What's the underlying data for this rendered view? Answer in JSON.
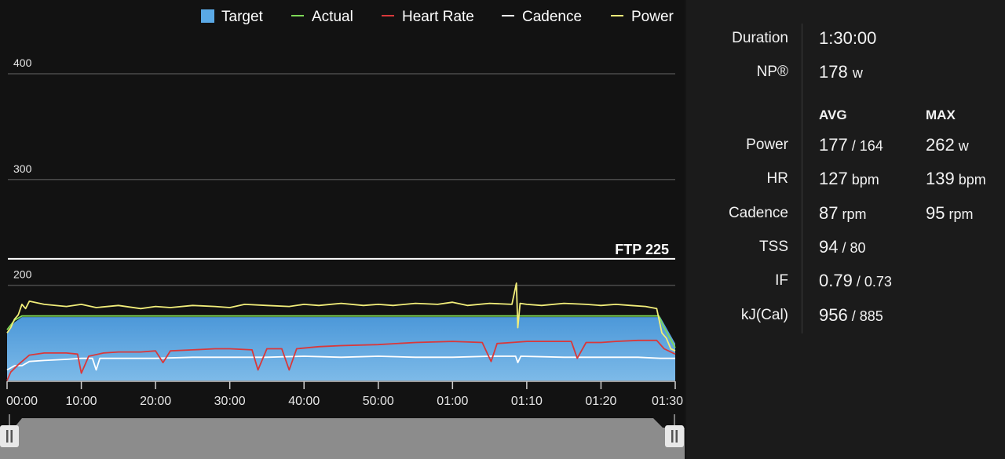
{
  "legend": [
    {
      "name": "Target",
      "marker": "square",
      "color": "#5aa9e6"
    },
    {
      "name": "Actual",
      "marker": "line",
      "color": "#7ed957"
    },
    {
      "name": "Heart Rate",
      "marker": "line",
      "color": "#d9383a"
    },
    {
      "name": "Cadence",
      "marker": "line",
      "color": "#ffffff"
    },
    {
      "name": "Power",
      "marker": "line",
      "color": "#f2ee7a"
    }
  ],
  "chart_data": {
    "type": "line",
    "x_unit": "minutes",
    "xlim": [
      0,
      90
    ],
    "ylim": [
      110,
      440
    ],
    "y_ticks": [
      200,
      300,
      400
    ],
    "x_tick_labels": [
      "00:00",
      "10:00",
      "20:00",
      "30:00",
      "40:00",
      "50:00",
      "01:00",
      "01:10",
      "01:20",
      "01:30"
    ],
    "x_tick_values": [
      0,
      10,
      20,
      30,
      40,
      50,
      60,
      70,
      80,
      90
    ],
    "ftp": {
      "label": "FTP 225",
      "value": 225
    },
    "series": [
      {
        "name": "Target",
        "type": "area",
        "color": "#5aa9e6",
        "x": [
          0,
          1,
          2,
          88,
          90
        ],
        "y": [
          155,
          165,
          170,
          170,
          145
        ]
      },
      {
        "name": "Actual",
        "color": "#7ed957",
        "x": [
          0,
          1,
          2,
          87.8,
          88.5,
          90
        ],
        "y": [
          158,
          167,
          171,
          171,
          160,
          141
        ]
      },
      {
        "name": "Power",
        "color": "#f2ee7a",
        "x": [
          0,
          0.5,
          1,
          1.5,
          2,
          2.5,
          3,
          5,
          8,
          10,
          12,
          15,
          18,
          20,
          22,
          25,
          28,
          30,
          32,
          35,
          38,
          40,
          42,
          45,
          48,
          50,
          52,
          55,
          58,
          60,
          62,
          65,
          68,
          68.6,
          68.8,
          69.1,
          70,
          72,
          75,
          78,
          80,
          82,
          84,
          86,
          87.5,
          88.2,
          88.8,
          89.4,
          90
        ],
        "y": [
          155,
          160,
          168,
          172,
          182,
          178,
          185,
          182,
          180,
          182,
          179,
          181,
          178,
          180,
          179,
          181,
          180,
          179,
          182,
          181,
          180,
          182,
          181,
          183,
          181,
          182,
          181,
          183,
          182,
          184,
          181,
          183,
          182,
          202,
          160,
          183,
          182,
          181,
          183,
          182,
          181,
          182,
          181,
          180,
          178,
          155,
          150,
          140,
          138
        ]
      },
      {
        "name": "Heart Rate",
        "color": "#d9383a",
        "x": [
          0,
          0.5,
          1.5,
          3,
          5,
          8,
          9.5,
          10,
          11,
          13,
          15,
          18,
          20,
          21,
          22,
          25,
          28,
          30,
          33,
          33.8,
          35,
          37,
          38,
          39,
          42,
          45,
          50,
          55,
          60,
          64,
          65.2,
          66,
          68,
          70,
          72,
          76,
          76.8,
          78,
          80,
          82,
          85,
          87.5,
          88.5,
          90
        ],
        "y": [
          110,
          118,
          125,
          134,
          136,
          136,
          135,
          117,
          133,
          136,
          137,
          137,
          138,
          127,
          138,
          139,
          140,
          140,
          139,
          120,
          140,
          140,
          120,
          140,
          142,
          143,
          144,
          146,
          147,
          146,
          128,
          145,
          146,
          147,
          147,
          147,
          131,
          146,
          146,
          147,
          148,
          148,
          140,
          135
        ]
      },
      {
        "name": "Cadence",
        "color": "#ffffff",
        "x": [
          0,
          1,
          2,
          3,
          5,
          8,
          10,
          11.5,
          12,
          12.5,
          14,
          20,
          25,
          30,
          35,
          40,
          45,
          50,
          55,
          60,
          65,
          68.5,
          68.8,
          69.2,
          75,
          80,
          85,
          88,
          90
        ],
        "y": [
          120,
          124,
          124,
          128,
          129,
          130,
          131,
          131,
          120,
          131,
          131,
          131,
          132,
          132,
          132,
          133,
          132,
          133,
          132,
          132,
          133,
          133,
          127,
          133,
          132,
          132,
          132,
          131,
          131
        ]
      }
    ]
  },
  "stats": {
    "duration_label": "Duration",
    "duration_value": "1:30:00",
    "np_label": "NP®",
    "np_value": "178",
    "np_unit": "w",
    "avg_header": "AVG",
    "max_header": "MAX",
    "rows": [
      {
        "label": "Power",
        "avg": "177",
        "avg_sub": " / 164",
        "max": "262",
        "max_unit": " w"
      },
      {
        "label": "HR",
        "avg": "127",
        "avg_sub": " bpm",
        "max": "139",
        "max_unit": " bpm"
      },
      {
        "label": "Cadence",
        "avg": "87",
        "avg_sub": " rpm",
        "max": "95",
        "max_unit": " rpm"
      },
      {
        "label": "TSS",
        "avg": "94",
        "avg_sub": " / 80",
        "max": "",
        "max_unit": ""
      },
      {
        "label": "IF",
        "avg": "0.79",
        "avg_sub": " / 0.73",
        "max": "",
        "max_unit": ""
      },
      {
        "label": "kJ(Cal)",
        "avg": "956",
        "avg_sub": " / 885",
        "max": "",
        "max_unit": ""
      }
    ]
  },
  "scrubber": {
    "left_handle_icon": "pause-bars-icon",
    "right_handle_icon": "pause-bars-icon",
    "track_color": "#8c8c8c"
  }
}
